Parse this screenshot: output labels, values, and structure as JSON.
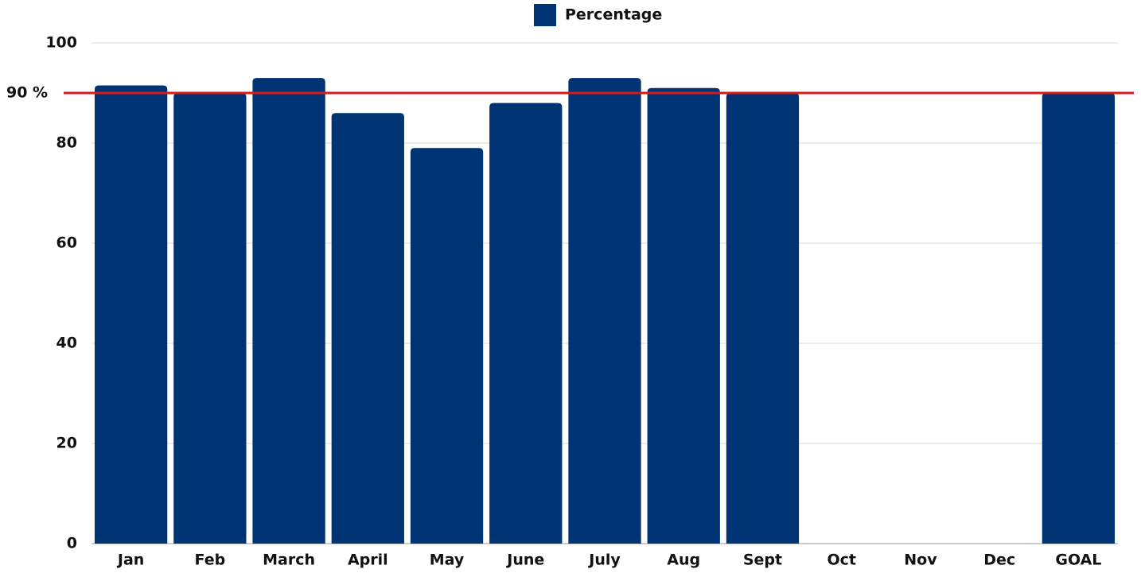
{
  "chart_data": {
    "type": "bar",
    "categories": [
      "Jan",
      "Feb",
      "March",
      "April",
      "May",
      "June",
      "July",
      "Aug",
      "Sept",
      "Oct",
      "Nov",
      "Dec",
      "GOAL"
    ],
    "series": [
      {
        "name": "Percentage",
        "color": "#003373",
        "values": [
          91.5,
          90,
          93,
          86,
          79,
          88,
          93,
          91,
          90,
          null,
          null,
          null,
          90
        ]
      }
    ],
    "ylim": [
      0,
      100
    ],
    "yticks": [
      0,
      20,
      40,
      60,
      80,
      100
    ],
    "grid": true,
    "legend": "top",
    "reference_line": {
      "value": 90,
      "label": "90 %",
      "color": "#d71a1a"
    }
  }
}
